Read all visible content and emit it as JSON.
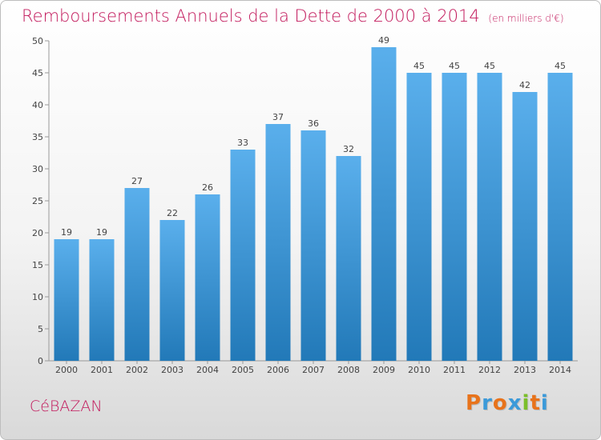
{
  "header": {
    "title": "Remboursements Annuels de la Dette de 2000 à 2014",
    "unit": "(en milliers d'€)"
  },
  "footer": {
    "commune": "CéBAZAN",
    "logo": "Proxiti"
  },
  "colors": {
    "title": "#c2185b",
    "bar_top": "#5aafec",
    "bar_bottom": "#2279b8",
    "logo_letters": [
      "#e8731b",
      "#3b9ad9",
      "#e8731b",
      "#3b9ad9",
      "#7bbf2a",
      "#e8731b",
      "#3b9ad9"
    ]
  },
  "chart_data": {
    "type": "bar",
    "title": "Remboursements Annuels de la Dette de 2000 à 2014",
    "xlabel": "",
    "ylabel": "",
    "categories": [
      "2000",
      "2001",
      "2002",
      "2003",
      "2004",
      "2005",
      "2006",
      "2007",
      "2008",
      "2009",
      "2010",
      "2011",
      "2012",
      "2013",
      "2014"
    ],
    "values": [
      19,
      19,
      27,
      22,
      26,
      33,
      37,
      36,
      32,
      49,
      45,
      45,
      45,
      42,
      45
    ],
    "ylim": [
      0,
      50
    ],
    "yticks": [
      0,
      5,
      10,
      15,
      20,
      25,
      30,
      35,
      40,
      45,
      50
    ],
    "grid": false
  }
}
